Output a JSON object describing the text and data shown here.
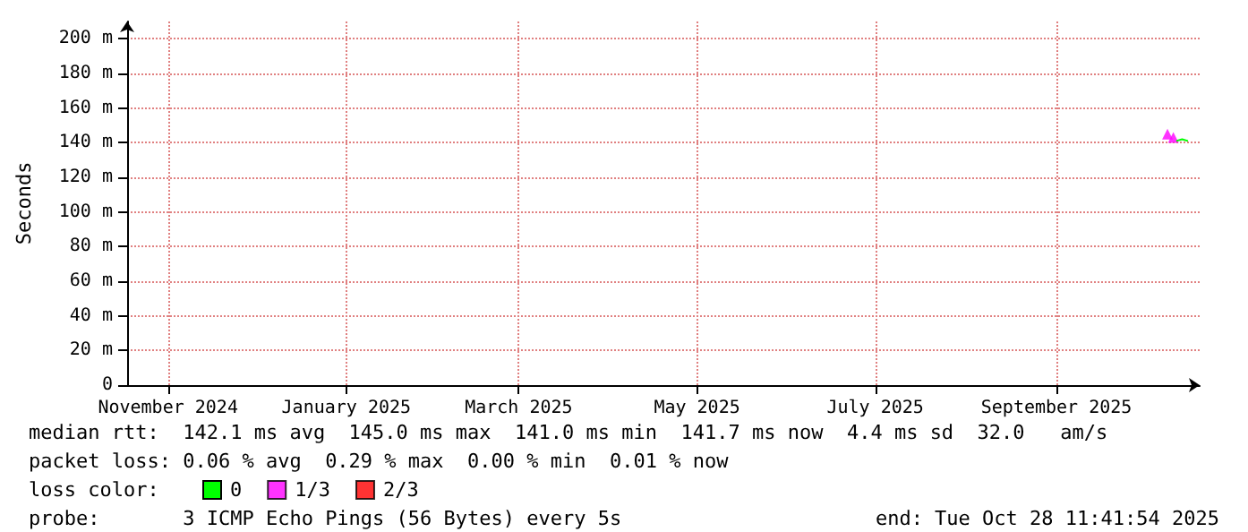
{
  "chart_data": {
    "type": "line",
    "ylabel": "Seconds",
    "legend_title": "loss color:",
    "annotations": [
      "median rtt:  142.1 ms avg  145.0 ms max  141.0 ms min  141.7 ms now  4.4 ms sd  32.0   am/s",
      "packet loss: 0.06 % avg  0.29 % max  0.00 % min  0.01 % now",
      "probe:       3 ICMP Echo Pings (56 Bytes) every 5s",
      "end: Tue Oct 28 11:41:54 2025"
    ],
    "xlim": [
      "2024-10-18",
      "2025-10-20"
    ],
    "xticks": [
      {
        "value": "2024-11-01",
        "label": "November 2024"
      },
      {
        "value": "2025-01-01",
        "label": "January 2025"
      },
      {
        "value": "2025-03-01",
        "label": "March 2025"
      },
      {
        "value": "2025-05-01",
        "label": "May 2025"
      },
      {
        "value": "2025-07-01",
        "label": "July 2025"
      },
      {
        "value": "2025-09-01",
        "label": "September 2025"
      }
    ],
    "ylim": [
      0,
      210
    ],
    "yticks": [
      0,
      {
        "value": 20,
        "label": "20 m"
      },
      {
        "value": 40,
        "label": "40 m"
      },
      {
        "value": 60,
        "label": "60 m"
      },
      {
        "value": 80,
        "label": "80 m"
      },
      {
        "value": 100,
        "label": "100 m"
      },
      {
        "value": 120,
        "label": "120 m"
      },
      {
        "value": 140,
        "label": "140 m"
      },
      {
        "value": 160,
        "label": "160 m"
      },
      {
        "value": 180,
        "label": "180 m"
      },
      {
        "value": 200,
        "label": "200 m"
      }
    ],
    "grid": true,
    "legend": "bottom",
    "marker": "none",
    "series": [
      {
        "name": "0",
        "color": "#00ff00",
        "x": [
          "2025-10-12",
          "2025-10-14",
          "2025-10-16"
        ],
        "values": [
          141,
          142,
          141
        ]
      },
      {
        "name": "1/3",
        "color": "#ff00ff",
        "type": "scatter",
        "marker": "triangle",
        "x": [
          "2025-10-09",
          "2025-10-11"
        ],
        "values": [
          145,
          143
        ]
      },
      {
        "name": "2/3",
        "color": "#ff0000",
        "type": "scatter",
        "marker": "triangle"
      }
    ]
  }
}
